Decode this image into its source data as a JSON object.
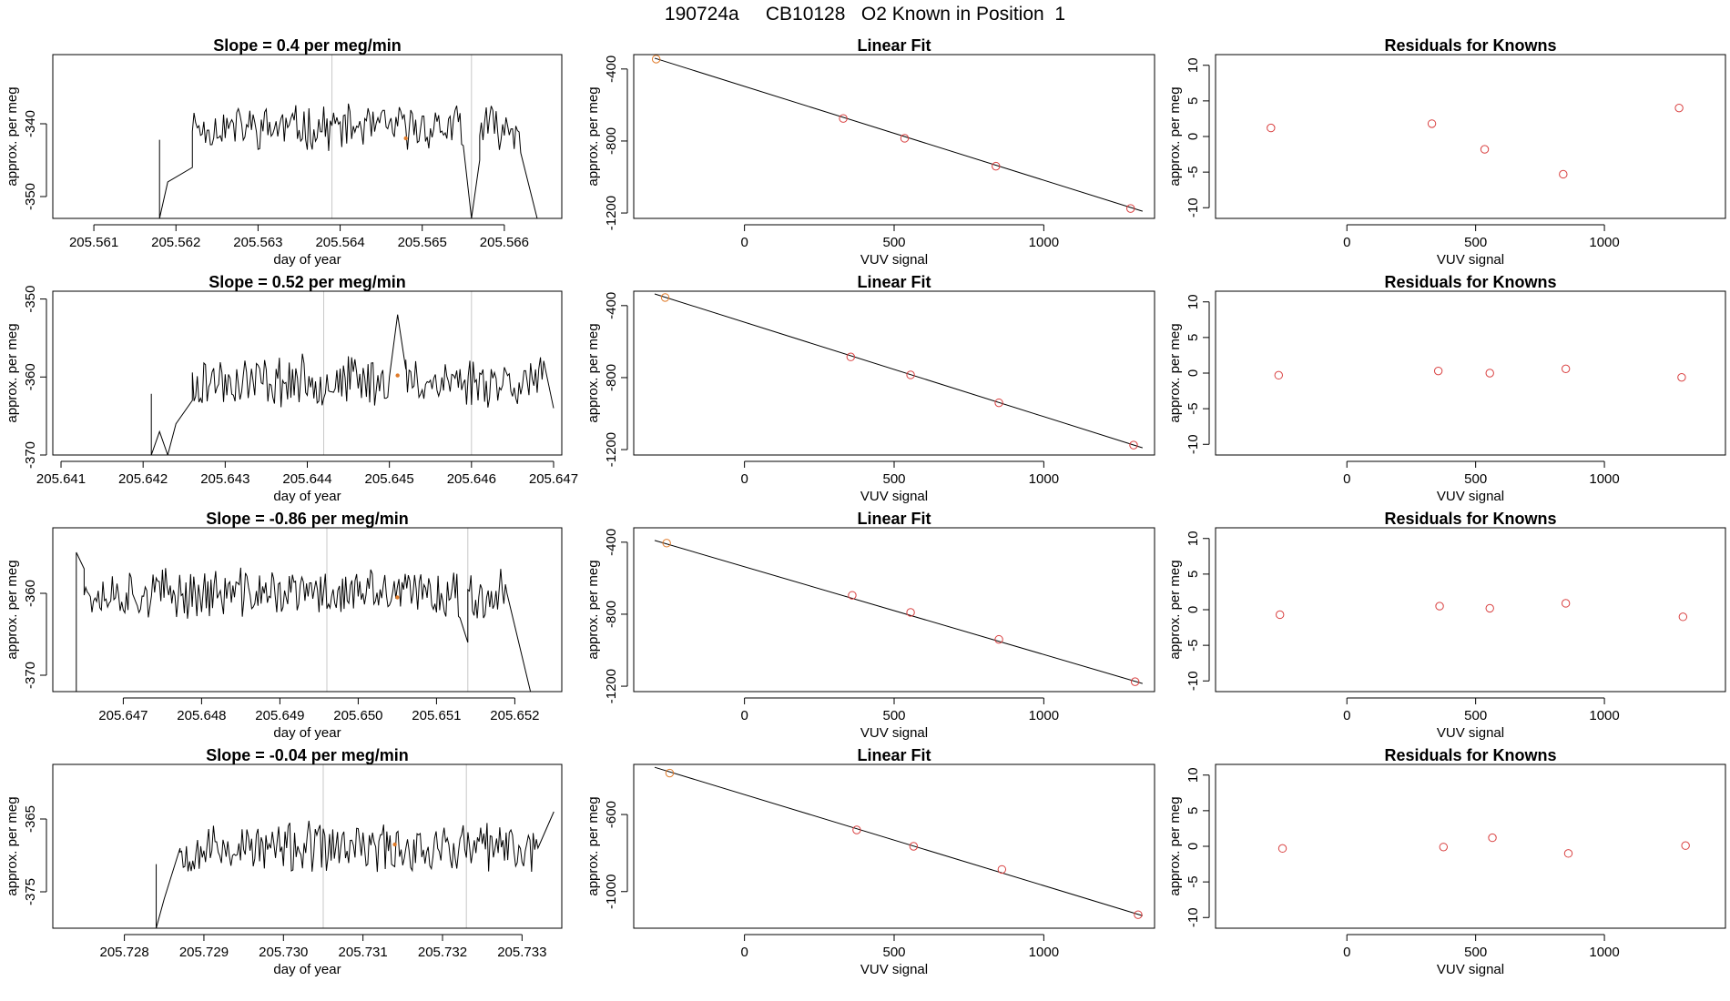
{
  "page": {
    "title": "190724a     CB10128   O2 Known in Position  1"
  },
  "colors": {
    "trace": "#000000",
    "frame": "#000000",
    "vline": "#c8c8c8",
    "point": "#e07b2a",
    "residual": "#d94040"
  },
  "chart_data": [
    {
      "type": "line",
      "row": 0,
      "panel": "timeseries",
      "title": "Slope =  0.4  per meg/min",
      "xlabel": "day of year",
      "ylabel": "approx. per meg",
      "xlim": [
        205.5605,
        205.5667
      ],
      "ylim": [
        -353,
        -330.5
      ],
      "xticks": [
        205.561,
        205.562,
        205.563,
        205.564,
        205.565,
        205.566
      ],
      "xtick_labels": [
        "205.561",
        "205.562",
        "205.563",
        "205.564",
        "205.565",
        "205.566"
      ],
      "yticks": [
        -350,
        -340
      ],
      "ytick_labels": [
        "-350",
        "-340"
      ],
      "vlines": [
        205.5639,
        205.5656
      ],
      "marker": {
        "x": 205.5648,
        "y": -342.0
      },
      "trace": {
        "start": 205.5618,
        "end": 205.5664,
        "step": 2e-05,
        "base": -340.5,
        "amp": 2.6,
        "seed": 11,
        "edges": [
          [
            205.5618,
            -353,
            205.5619,
            -348
          ],
          [
            205.5619,
            -348,
            205.5622,
            -346
          ],
          [
            205.5655,
            -343,
            205.5656,
            -353
          ],
          [
            205.5656,
            -353,
            205.5657,
            -345
          ],
          [
            205.5662,
            -344,
            205.5664,
            -353
          ]
        ]
      }
    },
    {
      "type": "scatter",
      "row": 0,
      "panel": "fit",
      "title": "Linear Fit",
      "xlabel": "VUV signal",
      "ylabel": "approx. per meg",
      "xlim": [
        -370,
        1370
      ],
      "ylim": [
        -1230,
        -320
      ],
      "xticks": [
        0,
        500,
        1000
      ],
      "xtick_labels": [
        "0",
        "500",
        "1000"
      ],
      "yticks": [
        -1200,
        -800,
        -400
      ],
      "ytick_labels": [
        "-1200",
        "-800",
        "-400"
      ],
      "points": [
        [
          -295,
          -345
        ],
        [
          330,
          -675
        ],
        [
          535,
          -785
        ],
        [
          840,
          -940
        ],
        [
          1290,
          -1175
        ]
      ],
      "fit": {
        "x0": -300,
        "y0": -340,
        "x1": 1330,
        "y1": -1190
      }
    },
    {
      "type": "scatter",
      "row": 0,
      "panel": "residuals",
      "title": "Residuals for Knowns",
      "xlabel": "VUV signal",
      "ylabel": "approx. per meg",
      "xlim": [
        -510,
        1470
      ],
      "ylim": [
        -11.5,
        11.5
      ],
      "xticks": [
        0,
        500,
        1000
      ],
      "xtick_labels": [
        "0",
        "500",
        "1000"
      ],
      "yticks": [
        -10,
        -5,
        0,
        5,
        10
      ],
      "ytick_labels": [
        "-10",
        "-5",
        "0",
        "5",
        "10"
      ],
      "points": [
        [
          -295,
          1.2
        ],
        [
          330,
          1.8
        ],
        [
          535,
          -1.8
        ],
        [
          840,
          -5.3
        ],
        [
          1290,
          4.0
        ]
      ]
    },
    {
      "type": "line",
      "row": 1,
      "panel": "timeseries",
      "title": "Slope =  0.52  per meg/min",
      "xlabel": "day of year",
      "ylabel": "approx. per meg",
      "xlim": [
        205.6409,
        205.6471
      ],
      "ylim": [
        -370,
        -349
      ],
      "xticks": [
        205.641,
        205.642,
        205.643,
        205.644,
        205.645,
        205.646,
        205.647
      ],
      "xtick_labels": [
        "205.641",
        "205.642",
        "205.643",
        "205.644",
        "205.645",
        "205.646",
        "205.647"
      ],
      "yticks": [
        -370,
        -360,
        -350
      ],
      "ytick_labels": [
        "-370",
        "-360",
        "-350"
      ],
      "vlines": [
        205.6442,
        205.646
      ],
      "marker": {
        "x": 205.6451,
        "y": -359.8
      },
      "trace": {
        "start": 205.6421,
        "end": 205.647,
        "step": 2e-05,
        "base": -360.5,
        "amp": 2.8,
        "seed": 23,
        "edges": [
          [
            205.6421,
            -370,
            205.6422,
            -367
          ],
          [
            205.6422,
            -367,
            205.6423,
            -370
          ],
          [
            205.6423,
            -370,
            205.6424,
            -366
          ],
          [
            205.6424,
            -366,
            205.6426,
            -363
          ],
          [
            205.645,
            -360,
            205.6451,
            -352
          ],
          [
            205.6451,
            -352,
            205.6452,
            -359
          ],
          [
            205.6469,
            -359,
            205.647,
            -364
          ]
        ]
      }
    },
    {
      "type": "scatter",
      "row": 1,
      "panel": "fit",
      "title": "Linear Fit",
      "xlabel": "VUV signal",
      "ylabel": "approx. per meg",
      "xlim": [
        -370,
        1370
      ],
      "ylim": [
        -1230,
        -320
      ],
      "xticks": [
        0,
        500,
        1000
      ],
      "xtick_labels": [
        "0",
        "500",
        "1000"
      ],
      "yticks": [
        -1200,
        -800,
        -400
      ],
      "ytick_labels": [
        "-1200",
        "-800",
        "-400"
      ],
      "points": [
        [
          -265,
          -355
        ],
        [
          355,
          -685
        ],
        [
          555,
          -785
        ],
        [
          850,
          -940
        ],
        [
          1300,
          -1175
        ]
      ],
      "fit": {
        "x0": -300,
        "y0": -335,
        "x1": 1330,
        "y1": -1190
      }
    },
    {
      "type": "scatter",
      "row": 1,
      "panel": "residuals",
      "title": "Residuals for Knowns",
      "xlabel": "VUV signal",
      "ylabel": "approx. per meg",
      "xlim": [
        -510,
        1470
      ],
      "ylim": [
        -11.5,
        11.5
      ],
      "xticks": [
        0,
        500,
        1000
      ],
      "xtick_labels": [
        "0",
        "500",
        "1000"
      ],
      "yticks": [
        -10,
        -5,
        0,
        5,
        10
      ],
      "ytick_labels": [
        "-10",
        "-5",
        "0",
        "5",
        "10"
      ],
      "points": [
        [
          -265,
          -0.3
        ],
        [
          355,
          0.3
        ],
        [
          555,
          0.0
        ],
        [
          850,
          0.6
        ],
        [
          1300,
          -0.6
        ]
      ]
    },
    {
      "type": "line",
      "row": 2,
      "panel": "timeseries",
      "title": "Slope =  -0.86  per meg/min",
      "xlabel": "day of year",
      "ylabel": "approx. per meg",
      "xlim": [
        205.6461,
        205.6526
      ],
      "ylim": [
        -372,
        -352
      ],
      "xticks": [
        205.647,
        205.648,
        205.649,
        205.65,
        205.651,
        205.652
      ],
      "xtick_labels": [
        "205.647",
        "205.648",
        "205.649",
        "205.650",
        "205.651",
        "205.652"
      ],
      "yticks": [
        -370,
        -360
      ],
      "ytick_labels": [
        "-370",
        "-360"
      ],
      "vlines": [
        205.6496,
        205.6514
      ],
      "marker": {
        "x": 205.6505,
        "y": -360.5
      },
      "trace": {
        "start": 205.6464,
        "end": 205.6521,
        "step": 2e-05,
        "base": -360.0,
        "amp": 2.6,
        "seed": 37,
        "edges": [
          [
            205.6464,
            -355,
            205.6465,
            -357
          ],
          [
            205.6513,
            -363,
            205.6514,
            -366
          ],
          [
            205.6519,
            -360,
            205.6522,
            -372
          ]
        ]
      }
    },
    {
      "type": "scatter",
      "row": 2,
      "panel": "fit",
      "title": "Linear Fit",
      "xlabel": "VUV signal",
      "ylabel": "approx. per meg",
      "xlim": [
        -370,
        1370
      ],
      "ylim": [
        -1230,
        -320
      ],
      "xticks": [
        0,
        500,
        1000
      ],
      "xtick_labels": [
        "0",
        "500",
        "1000"
      ],
      "yticks": [
        -1200,
        -800,
        -400
      ],
      "ytick_labels": [
        "-1200",
        "-800",
        "-400"
      ],
      "points": [
        [
          -260,
          -405
        ],
        [
          360,
          -695
        ],
        [
          555,
          -790
        ],
        [
          850,
          -940
        ],
        [
          1305,
          -1175
        ]
      ],
      "fit": {
        "x0": -300,
        "y0": -390,
        "x1": 1330,
        "y1": -1185
      }
    },
    {
      "type": "scatter",
      "row": 2,
      "panel": "residuals",
      "title": "Residuals for Knowns",
      "xlabel": "VUV signal",
      "ylabel": "approx. per meg",
      "xlim": [
        -510,
        1470
      ],
      "ylim": [
        -11.5,
        11.5
      ],
      "xticks": [
        0,
        500,
        1000
      ],
      "xtick_labels": [
        "0",
        "500",
        "1000"
      ],
      "yticks": [
        -10,
        -5,
        0,
        5,
        10
      ],
      "ytick_labels": [
        "-10",
        "-5",
        "0",
        "5",
        "10"
      ],
      "points": [
        [
          -260,
          -0.7
        ],
        [
          360,
          0.5
        ],
        [
          555,
          0.2
        ],
        [
          850,
          0.9
        ],
        [
          1305,
          -1.0
        ]
      ]
    },
    {
      "type": "line",
      "row": 3,
      "panel": "timeseries",
      "title": "Slope =  -0.04  per meg/min",
      "xlabel": "day of year",
      "ylabel": "approx. per meg",
      "xlim": [
        205.7271,
        205.7335
      ],
      "ylim": [
        -380,
        -357.5
      ],
      "xticks": [
        205.728,
        205.729,
        205.73,
        205.731,
        205.732,
        205.733
      ],
      "xtick_labels": [
        "205.728",
        "205.729",
        "205.730",
        "205.731",
        "205.732",
        "205.733"
      ],
      "yticks": [
        -375,
        -365
      ],
      "ytick_labels": [
        "-375",
        "-365"
      ],
      "vlines": [
        205.7305,
        205.7323
      ],
      "marker": {
        "x": 205.7314,
        "y": -368.5
      },
      "trace": {
        "start": 205.7284,
        "end": 205.7334,
        "step": 2e-05,
        "base": -369.0,
        "amp": 3.0,
        "seed": 53,
        "edges": [
          [
            205.7284,
            -380,
            205.7285,
            -376
          ],
          [
            205.7285,
            -376,
            205.7287,
            -369
          ],
          [
            205.7332,
            -369,
            205.7334,
            -364
          ]
        ]
      }
    },
    {
      "type": "scatter",
      "row": 3,
      "panel": "fit",
      "title": "Linear Fit",
      "xlabel": "VUV signal",
      "ylabel": "approx. per meg",
      "xlim": [
        -370,
        1370
      ],
      "ylim": [
        -1190,
        -340
      ],
      "xticks": [
        0,
        500,
        1000
      ],
      "xtick_labels": [
        "0",
        "500",
        "1000"
      ],
      "yticks": [
        -1000,
        -600
      ],
      "ytick_labels": [
        "-1000",
        "-600"
      ],
      "points": [
        [
          -250,
          -385
        ],
        [
          375,
          -680
        ],
        [
          565,
          -765
        ],
        [
          860,
          -885
        ],
        [
          1315,
          -1120
        ]
      ],
      "fit": {
        "x0": -300,
        "y0": -355,
        "x1": 1330,
        "y1": -1125
      }
    },
    {
      "type": "scatter",
      "row": 3,
      "panel": "residuals",
      "title": "Residuals for Knowns",
      "xlabel": "VUV signal",
      "ylabel": "approx. per meg",
      "xlim": [
        -510,
        1470
      ],
      "ylim": [
        -11.5,
        11.5
      ],
      "xticks": [
        0,
        500,
        1000
      ],
      "xtick_labels": [
        "0",
        "500",
        "1000"
      ],
      "yticks": [
        -10,
        -5,
        0,
        5,
        10
      ],
      "ytick_labels": [
        "-10",
        "-5",
        "0",
        "5",
        "10"
      ],
      "points": [
        [
          -250,
          -0.3
        ],
        [
          375,
          -0.1
        ],
        [
          565,
          1.2
        ],
        [
          860,
          -1.0
        ],
        [
          1315,
          0.1
        ]
      ]
    }
  ]
}
